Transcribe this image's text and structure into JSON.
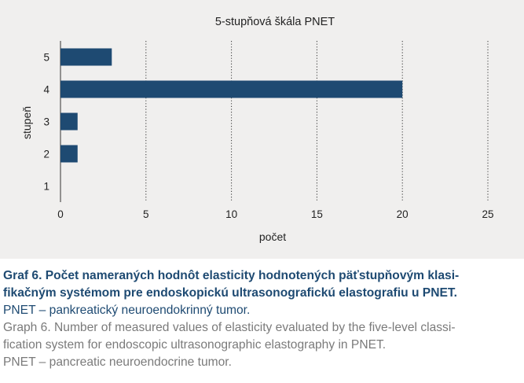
{
  "colors": {
    "bar": "#1e4a72",
    "panel_bg": "#f0efee",
    "caption_accent": "#1e4a72",
    "caption_grey": "#7a7a7a"
  },
  "chart_data": {
    "type": "bar",
    "orientation": "horizontal",
    "title": "5-stupňová škála PNET",
    "xlabel": "počet",
    "ylabel": "stupeň",
    "categories": [
      "1",
      "2",
      "3",
      "4",
      "5"
    ],
    "values": [
      0,
      1,
      1,
      20,
      3
    ],
    "xlim": [
      0,
      25
    ],
    "xticks": [
      "0",
      "5",
      "10",
      "15",
      "20",
      "25"
    ],
    "grid": "vertical dotted",
    "legend": "none"
  },
  "caption": {
    "sk_title_line1": "Graf 6. Počet nameraných hodnôt elasticity hodnotených päťstupňovým klasi-",
    "sk_title_line2": "fikačným systémom pre endoskopickú ultrasonografickú elastografiu u PNET.",
    "sk_abbr": "PNET – pankreatický neuroendokrinný tumor.",
    "en_title_line1": "Graph 6. Number of measured values of elasticity evaluated by the five-level classi-",
    "en_title_line2": "fication system for endoscopic ultrasonographic elastography in PNET.",
    "en_abbr": "PNET – pancreatic neuroendocrine tumor."
  }
}
